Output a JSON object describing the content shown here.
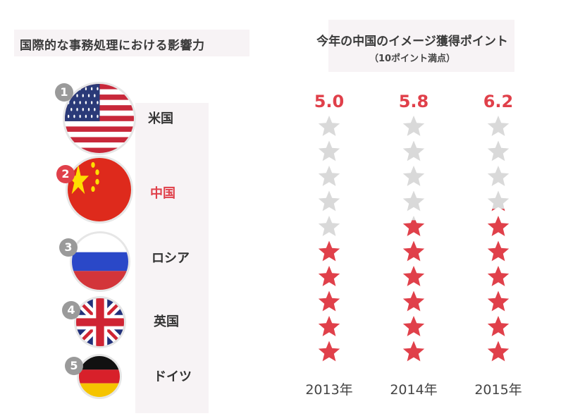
{
  "left_title": "国際的な事務処理における影響力",
  "right_title": "今年の中国のイメージ獲得ポイント",
  "right_subtitle": "（10ポイント満点）",
  "rankings": [
    {
      "rank": "1",
      "country": "米国",
      "flag": "usa-flag",
      "highlight": false
    },
    {
      "rank": "2",
      "country": "中国",
      "flag": "china-flag",
      "highlight": true
    },
    {
      "rank": "3",
      "country": "ロシア",
      "flag": "russia-flag",
      "highlight": false
    },
    {
      "rank": "4",
      "country": "英国",
      "flag": "uk-flag",
      "highlight": false
    },
    {
      "rank": "5",
      "country": "ドイツ",
      "flag": "germany-flag",
      "highlight": false
    }
  ],
  "chart_data": {
    "type": "table",
    "max_points": 10,
    "categories": [
      "2013年",
      "2014年",
      "2015年"
    ],
    "values": [
      5.0,
      5.8,
      6.2
    ],
    "labels": [
      "5.0",
      "5.8",
      "6.2"
    ]
  },
  "colors": {
    "accent": "#e0404a",
    "star_empty": "#d9d9d9",
    "badge_grey": "#9a9a9a",
    "panel": "#f7f3f5"
  }
}
